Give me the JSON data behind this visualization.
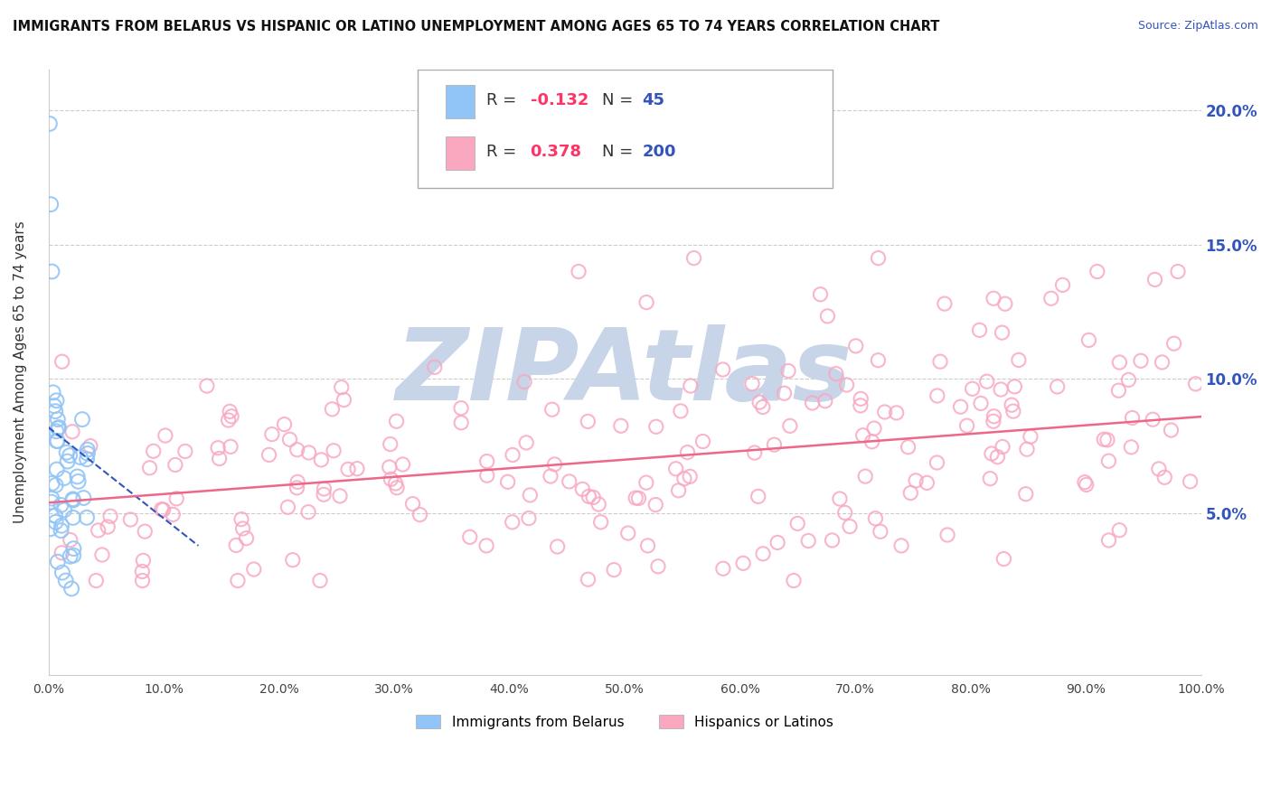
{
  "title": "IMMIGRANTS FROM BELARUS VS HISPANIC OR LATINO UNEMPLOYMENT AMONG AGES 65 TO 74 YEARS CORRELATION CHART",
  "source": "Source: ZipAtlas.com",
  "ylabel": "Unemployment Among Ages 65 to 74 years",
  "xlim": [
    0.0,
    1.0
  ],
  "ylim": [
    -0.01,
    0.215
  ],
  "yticks": [
    0.05,
    0.1,
    0.15,
    0.2
  ],
  "ytick_labels": [
    "5.0%",
    "10.0%",
    "15.0%",
    "20.0%"
  ],
  "xtick_labels": [
    "0.0%",
    "10.0%",
    "20.0%",
    "30.0%",
    "40.0%",
    "50.0%",
    "60.0%",
    "70.0%",
    "80.0%",
    "90.0%",
    "100.0%"
  ],
  "legend_R1": "-0.132",
  "legend_N1": "45",
  "legend_R2": "0.378",
  "legend_N2": "200",
  "legend_label1": "Immigrants from Belarus",
  "legend_label2": "Hispanics or Latinos",
  "color_blue": "#92C5F7",
  "color_pink": "#F9A8C0",
  "color_trend_blue": "#3355BB",
  "color_trend_pink": "#EE6688",
  "color_R_neg": "#FF3366",
  "color_R_pos": "#FF3366",
  "color_N": "#3355BB",
  "watermark": "ZIPAtlas",
  "watermark_color": "#C8D4E8",
  "blue_trend_x0": 0.0,
  "blue_trend_y0": 0.082,
  "blue_trend_x1": 0.13,
  "blue_trend_y1": 0.038,
  "pink_trend_x0": 0.0,
  "pink_trend_y0": 0.054,
  "pink_trend_x1": 1.0,
  "pink_trend_y1": 0.086
}
